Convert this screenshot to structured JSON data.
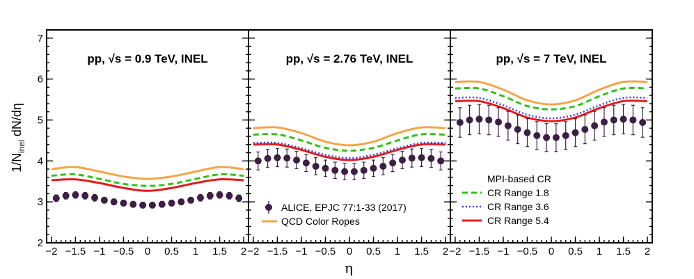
{
  "chart_data": {
    "type": "line",
    "ylabel": "1/N_inel dN/dη",
    "ylabel_main": "1/N",
    "ylabel_sub": "inel",
    "ylabel_tail": " dN/dη",
    "xlabel": "η",
    "xlim": [
      -2.1,
      2.1
    ],
    "ylim": [
      2,
      7.2
    ],
    "xticks": [
      -2,
      -1.5,
      -1,
      -0.5,
      0,
      0.5,
      1,
      1.5,
      2
    ],
    "xtick_labels": [
      "−2",
      "−1.5",
      "−1",
      "−0.5",
      "0",
      "0.5",
      "1",
      "1.5",
      "2"
    ],
    "yticks": [
      2,
      3,
      4,
      5,
      6,
      7
    ],
    "ytick_labels": [
      "2",
      "3",
      "4",
      "5",
      "6",
      "7"
    ],
    "eta": [
      -1.9,
      -1.7,
      -1.5,
      -1.3,
      -1.1,
      -0.9,
      -0.7,
      -0.5,
      -0.3,
      -0.1,
      0.1,
      0.3,
      0.5,
      0.7,
      0.9,
      1.1,
      1.3,
      1.5,
      1.7,
      1.9
    ],
    "colors": {
      "data": "#3d1f45",
      "ropes": "#f5a447",
      "cr18": "#2fc21a",
      "cr36": "#3a3ae8",
      "cr54": "#e31a1c"
    },
    "panels": [
      {
        "title": "pp, √s = 0.9 TeV, INEL",
        "data": [
          3.09,
          3.15,
          3.17,
          3.15,
          3.1,
          3.04,
          3.0,
          2.97,
          2.94,
          2.92,
          2.92,
          2.94,
          2.97,
          3.0,
          3.04,
          3.1,
          3.15,
          3.17,
          3.15,
          3.09
        ],
        "errors": [
          0.08,
          0.08,
          0.08,
          0.08,
          0.08,
          0.07,
          0.07,
          0.07,
          0.07,
          0.07,
          0.07,
          0.07,
          0.07,
          0.07,
          0.07,
          0.08,
          0.08,
          0.08,
          0.08,
          0.08
        ],
        "ropes": [
          [
            -2,
            3.8
          ],
          [
            -1.5,
            3.85
          ],
          [
            -1,
            3.74
          ],
          [
            -0.5,
            3.62
          ],
          [
            0,
            3.56
          ],
          [
            0.5,
            3.62
          ],
          [
            1,
            3.74
          ],
          [
            1.5,
            3.85
          ],
          [
            2,
            3.8
          ]
        ],
        "cr18": [
          [
            -2,
            3.64
          ],
          [
            -1.5,
            3.67
          ],
          [
            -1,
            3.56
          ],
          [
            -0.5,
            3.44
          ],
          [
            0,
            3.39
          ],
          [
            0.5,
            3.44
          ],
          [
            1,
            3.56
          ],
          [
            1.5,
            3.67
          ],
          [
            2,
            3.64
          ]
        ],
        "cr36": null,
        "cr54": [
          [
            -2,
            3.53
          ],
          [
            -1.5,
            3.55
          ],
          [
            -1,
            3.46
          ],
          [
            -0.5,
            3.34
          ],
          [
            0,
            3.27
          ],
          [
            0.5,
            3.34
          ],
          [
            1,
            3.46
          ],
          [
            1.5,
            3.55
          ],
          [
            2,
            3.53
          ]
        ]
      },
      {
        "title": "pp, √s = 2.76 TeV, INEL",
        "data": [
          4.0,
          4.06,
          4.08,
          4.07,
          4.02,
          3.95,
          3.87,
          3.82,
          3.77,
          3.74,
          3.74,
          3.77,
          3.82,
          3.87,
          3.95,
          4.02,
          4.07,
          4.08,
          4.06,
          4.0
        ],
        "errors": [
          0.22,
          0.22,
          0.22,
          0.22,
          0.21,
          0.21,
          0.21,
          0.2,
          0.2,
          0.2,
          0.2,
          0.2,
          0.2,
          0.21,
          0.21,
          0.21,
          0.22,
          0.22,
          0.22,
          0.22
        ],
        "ropes": [
          [
            -2,
            4.8
          ],
          [
            -1.5,
            4.82
          ],
          [
            -1,
            4.68
          ],
          [
            -0.5,
            4.47
          ],
          [
            0,
            4.38
          ],
          [
            0.5,
            4.47
          ],
          [
            1,
            4.68
          ],
          [
            1.5,
            4.82
          ],
          [
            2,
            4.8
          ]
        ],
        "cr18": [
          [
            -2,
            4.64
          ],
          [
            -1.5,
            4.65
          ],
          [
            -1,
            4.5
          ],
          [
            -0.5,
            4.32
          ],
          [
            0,
            4.25
          ],
          [
            0.5,
            4.32
          ],
          [
            1,
            4.5
          ],
          [
            1.5,
            4.65
          ],
          [
            2,
            4.64
          ]
        ],
        "cr36": [
          [
            -2,
            4.44
          ],
          [
            -1.5,
            4.44
          ],
          [
            -1,
            4.31
          ],
          [
            -0.5,
            4.15
          ],
          [
            0,
            4.07
          ],
          [
            0.5,
            4.15
          ],
          [
            1,
            4.31
          ],
          [
            1.5,
            4.44
          ],
          [
            2,
            4.44
          ]
        ],
        "cr54": [
          [
            -2,
            4.4
          ],
          [
            -1.5,
            4.4
          ],
          [
            -1,
            4.27
          ],
          [
            -0.5,
            4.1
          ],
          [
            0,
            4.02
          ],
          [
            0.5,
            4.1
          ],
          [
            1,
            4.27
          ],
          [
            1.5,
            4.4
          ],
          [
            2,
            4.4
          ]
        ]
      },
      {
        "title": "pp, √s = 7 TeV, INEL",
        "data": [
          4.94,
          5.0,
          5.02,
          5.0,
          4.95,
          4.86,
          4.77,
          4.69,
          4.62,
          4.57,
          4.57,
          4.62,
          4.69,
          4.77,
          4.86,
          4.95,
          5.0,
          5.02,
          5.0,
          4.94
        ],
        "errors": [
          0.36,
          0.36,
          0.36,
          0.36,
          0.35,
          0.35,
          0.35,
          0.34,
          0.34,
          0.34,
          0.34,
          0.34,
          0.34,
          0.35,
          0.35,
          0.35,
          0.36,
          0.36,
          0.36,
          0.36
        ],
        "ropes": [
          [
            -2,
            5.93
          ],
          [
            -1.5,
            5.93
          ],
          [
            -1,
            5.74
          ],
          [
            -0.5,
            5.48
          ],
          [
            0,
            5.38
          ],
          [
            0.5,
            5.48
          ],
          [
            1,
            5.74
          ],
          [
            1.5,
            5.93
          ],
          [
            2,
            5.93
          ]
        ],
        "cr18": [
          [
            -2,
            5.77
          ],
          [
            -1.5,
            5.77
          ],
          [
            -1,
            5.58
          ],
          [
            -0.5,
            5.34
          ],
          [
            0,
            5.26
          ],
          [
            0.5,
            5.34
          ],
          [
            1,
            5.58
          ],
          [
            1.5,
            5.77
          ],
          [
            2,
            5.77
          ]
        ],
        "cr36": [
          [
            -2,
            5.54
          ],
          [
            -1.5,
            5.54
          ],
          [
            -1,
            5.36
          ],
          [
            -0.5,
            5.13
          ],
          [
            0,
            5.04
          ],
          [
            0.5,
            5.13
          ],
          [
            1,
            5.36
          ],
          [
            1.5,
            5.54
          ],
          [
            2,
            5.54
          ]
        ],
        "cr54": [
          [
            -2,
            5.46
          ],
          [
            -1.5,
            5.46
          ],
          [
            -1,
            5.29
          ],
          [
            -0.5,
            5.06
          ],
          [
            0,
            4.97
          ],
          [
            0.5,
            5.06
          ],
          [
            1,
            5.29
          ],
          [
            1.5,
            5.46
          ],
          [
            2,
            5.46
          ]
        ]
      }
    ],
    "legend": {
      "data_label": "ALICE, EPJC 77:1-33 (2017)",
      "ropes_label": "QCD Color Ropes",
      "cr_header": "MPI-based CR",
      "cr18_label": "CR Range 1.8",
      "cr36_label": "CR Range 3.6",
      "cr54_label": "CR Range 5.4"
    }
  }
}
